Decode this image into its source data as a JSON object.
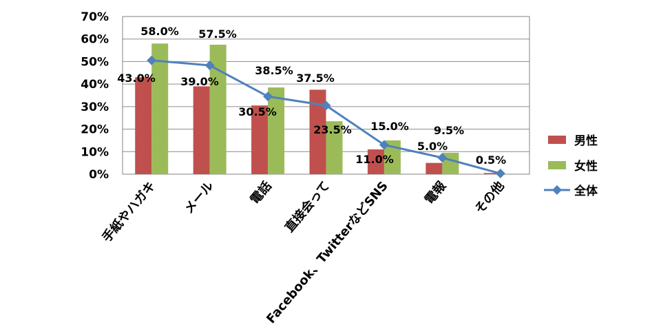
{
  "chart_data": {
    "type": "bar",
    "categories": [
      "手紙やハガキ",
      "メール",
      "電話",
      "直接会って",
      "Facebook、TwitterなどSNS",
      "電報",
      "その他"
    ],
    "series": [
      {
        "name": "男性",
        "type": "bar",
        "values": [
          43.0,
          39.0,
          30.5,
          37.5,
          11.0,
          5.0,
          0.5
        ],
        "color": "#C0504D"
      },
      {
        "name": "女性",
        "type": "bar",
        "values": [
          58.0,
          57.5,
          38.5,
          23.5,
          15.0,
          9.5,
          0.0
        ],
        "color": "#9BBB59"
      },
      {
        "name": "全体",
        "type": "line",
        "values": [
          50.5,
          48.3,
          34.5,
          30.5,
          13.0,
          7.3,
          0.3
        ],
        "color": "#4F81BD"
      }
    ],
    "ylim": [
      0,
      70
    ],
    "yticks": [
      "0%",
      "10%",
      "20%",
      "30%",
      "40%",
      "50%",
      "60%",
      "70%"
    ],
    "data_labels": [
      "43.0%",
      "58.0%",
      "39.0%",
      "57.5%",
      "30.5%",
      "38.5%",
      "37.5%",
      "23.5%",
      "11.0%",
      "15.0%",
      "5.0%",
      "9.5%",
      "0.5%"
    ],
    "legend_position": "right",
    "grid": true
  }
}
